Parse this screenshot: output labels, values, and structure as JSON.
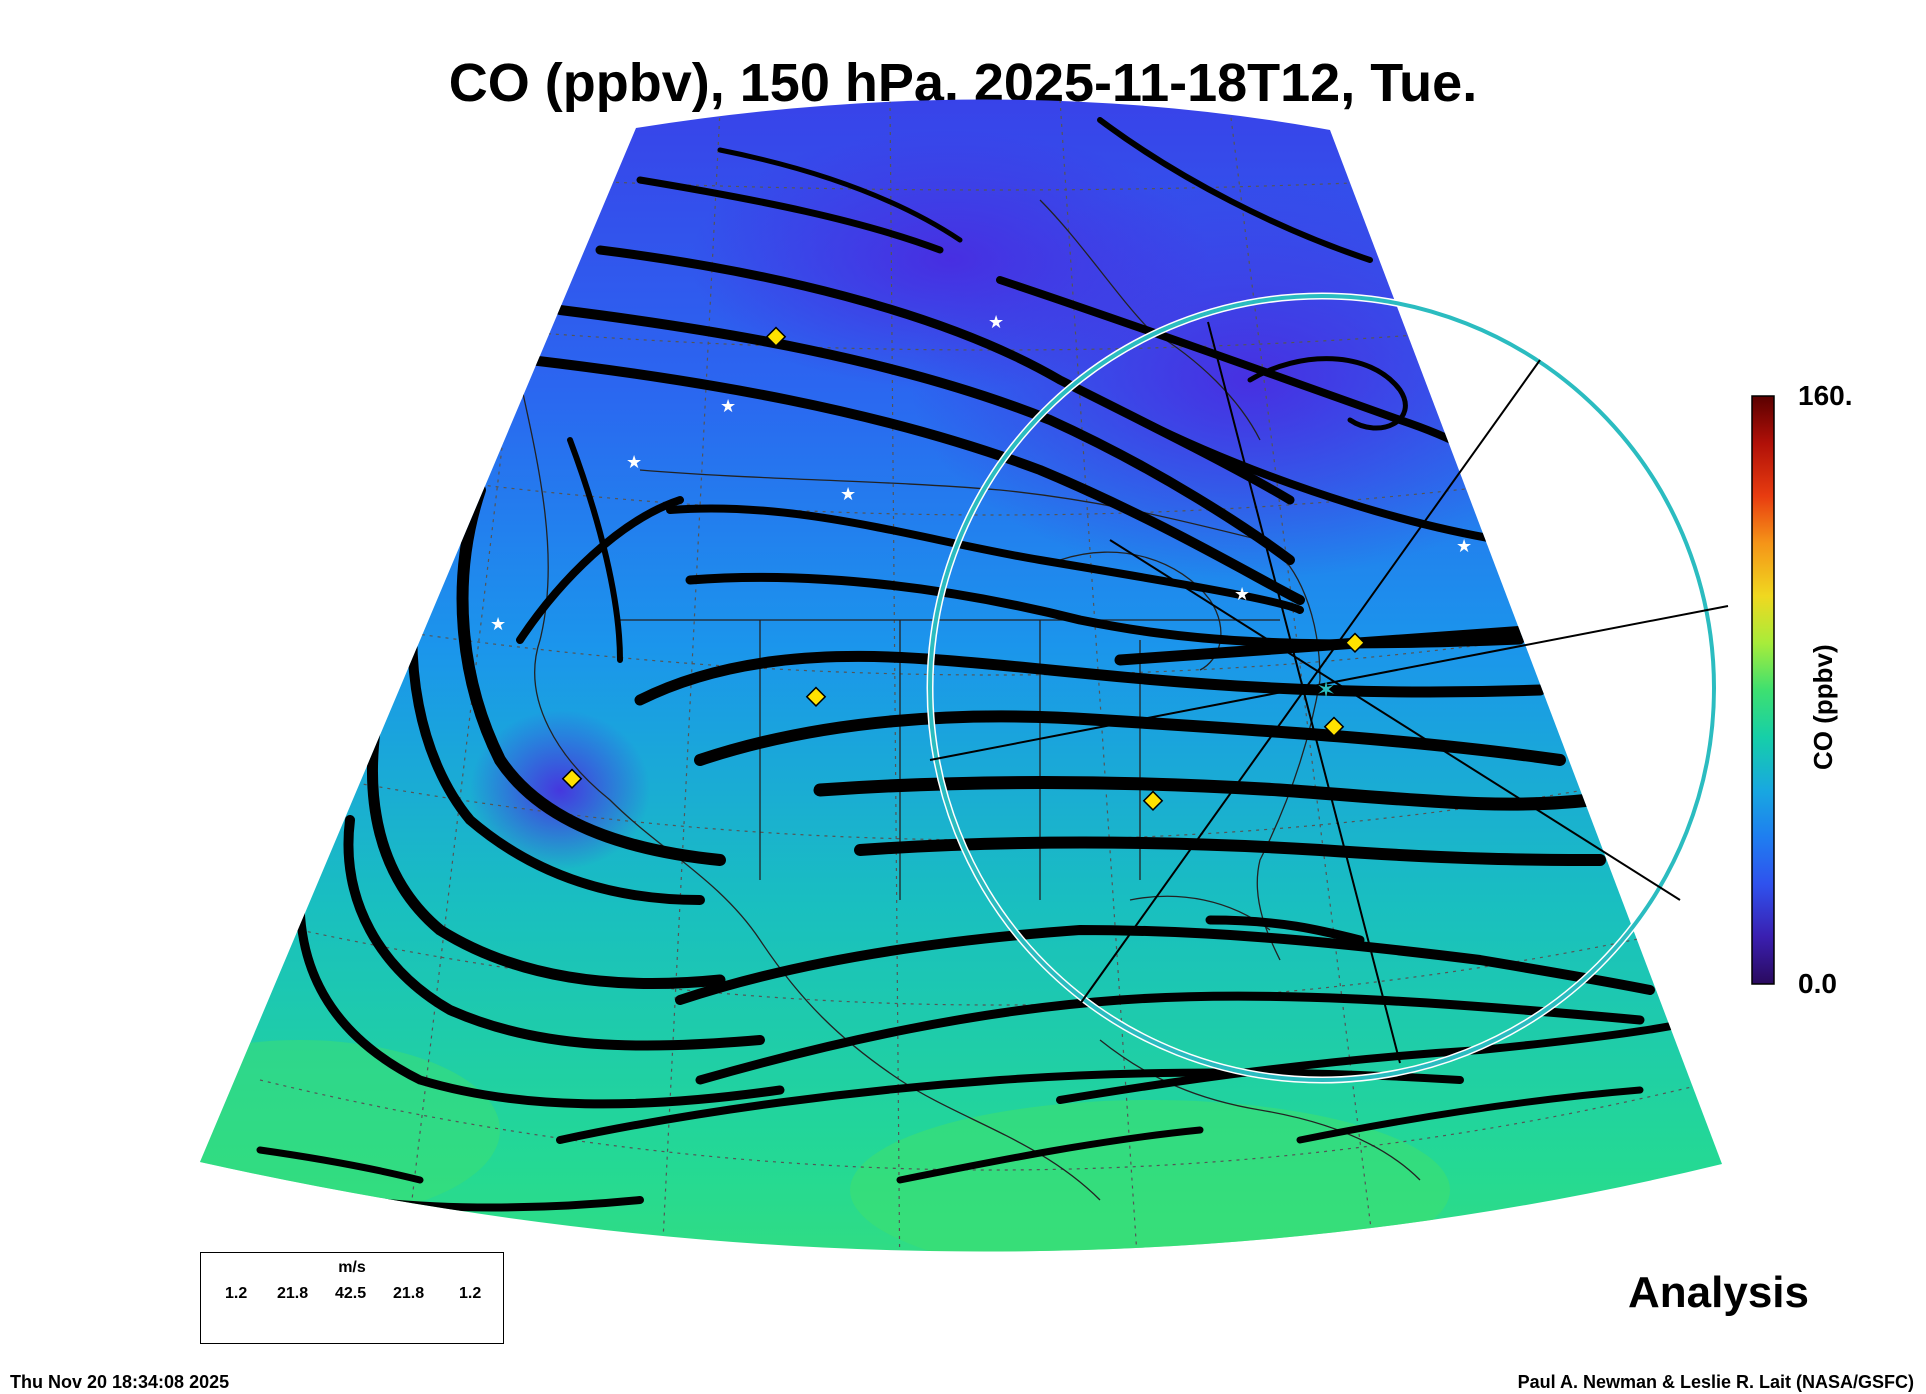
{
  "title": "CO (ppbv), 150 hPa, 2025-11-18T12, Tue.",
  "colorbar": {
    "max_label": "160.",
    "min_label": "0.0",
    "title": "CO (ppbv)",
    "colors": [
      "#2a0a5e",
      "#3a1fb0",
      "#2f52ee",
      "#1f7ef0",
      "#18a8e0",
      "#16cfa8",
      "#3ee070",
      "#a8ec3a",
      "#f0d820",
      "#f59418",
      "#e83c10",
      "#b01008",
      "#5a0000"
    ]
  },
  "wind_legend": {
    "units": "m/s",
    "values": [
      "1.2",
      "21.8",
      "42.5",
      "21.8",
      "1.2"
    ]
  },
  "stamp": "Analysis",
  "footer_timestamp": "Thu Nov 20 18:34:08 2025",
  "footer_credit": "Paul A. Newman & Leslie R. Lait (NASA/GSFC)",
  "map_colors": {
    "low_co": "#3b3fe6",
    "mid_co": "#1f8ff0",
    "high_co": "#2fd48c",
    "ring": "#2bbcc0",
    "station_marker": "#ffe200"
  }
}
